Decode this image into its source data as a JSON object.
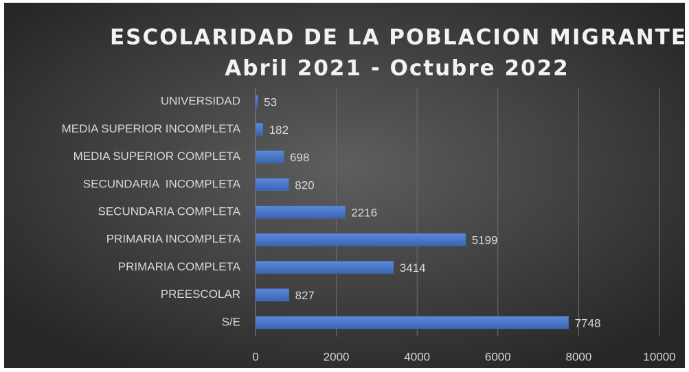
{
  "chart_data": {
    "type": "bar",
    "orientation": "horizontal",
    "title": "ESCOLARIDAD DE LA POBLACION MIGRANTE",
    "subtitle": "Abril 2021 - Octubre 2022",
    "categories": [
      "UNIVERSIDAD",
      "MEDIA SUPERIOR INCOMPLETA",
      "MEDIA SUPERIOR COMPLETA",
      "SECUNDARIA  INCOMPLETA",
      "SECUNDARIA COMPLETA",
      "PRIMARIA INCOMPLETA",
      "PRIMARIA COMPLETA",
      "PREESCOLAR",
      "S/E"
    ],
    "values": [
      53,
      182,
      698,
      820,
      2216,
      5199,
      3414,
      827,
      7748
    ],
    "color": "#4472c4",
    "xlim": [
      0,
      10000
    ],
    "xticks": [
      0,
      2000,
      4000,
      6000,
      8000,
      10000
    ],
    "grid": true
  }
}
